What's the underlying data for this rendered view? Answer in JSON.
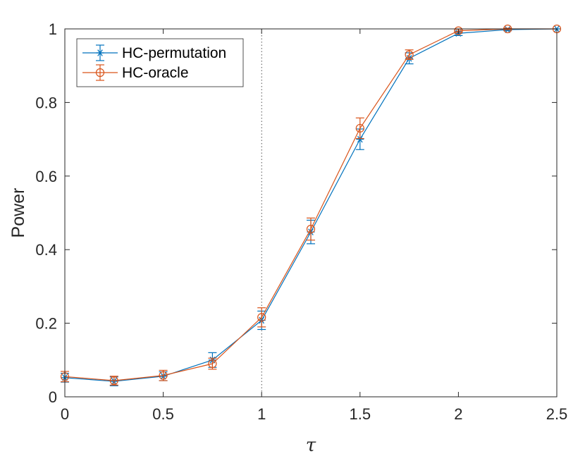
{
  "chart_data": {
    "type": "line",
    "title": "",
    "xlabel": "τ",
    "ylabel": "Power",
    "xlim": [
      0,
      2.5
    ],
    "ylim": [
      0,
      1
    ],
    "x_ticks": [
      0,
      0.5,
      1,
      1.5,
      2,
      2.5
    ],
    "x_tick_labels": [
      "0",
      "0.5",
      "1",
      "1.5",
      "2",
      "2.5"
    ],
    "y_ticks": [
      0,
      0.2,
      0.4,
      0.6,
      0.8,
      1
    ],
    "y_tick_labels": [
      "0",
      "0.2",
      "0.4",
      "0.6",
      "0.8",
      "1"
    ],
    "grid": false,
    "reference_line": {
      "x": 1,
      "style": "dotted"
    },
    "legend": {
      "placement": "top-left"
    },
    "x": [
      0,
      0.25,
      0.5,
      0.75,
      1,
      1.25,
      1.5,
      1.75,
      2,
      2.25,
      2.5
    ],
    "series": [
      {
        "name": "HC-permutation",
        "color": "#0072BD",
        "marker": "asterisk",
        "values": [
          0.052,
          0.042,
          0.056,
          0.1,
          0.208,
          0.448,
          0.7,
          0.92,
          0.988,
          0.998,
          1.0
        ],
        "errors": [
          0.012,
          0.012,
          0.012,
          0.02,
          0.025,
          0.032,
          0.028,
          0.015,
          0.006,
          0.003,
          0.0
        ]
      },
      {
        "name": "HC-oracle",
        "color": "#D95319",
        "marker": "circle",
        "values": [
          0.055,
          0.044,
          0.058,
          0.09,
          0.216,
          0.456,
          0.73,
          0.93,
          0.995,
          1.0,
          1.0
        ],
        "errors": [
          0.014,
          0.012,
          0.014,
          0.015,
          0.026,
          0.03,
          0.028,
          0.013,
          0.004,
          0.002,
          0.0
        ]
      }
    ]
  }
}
